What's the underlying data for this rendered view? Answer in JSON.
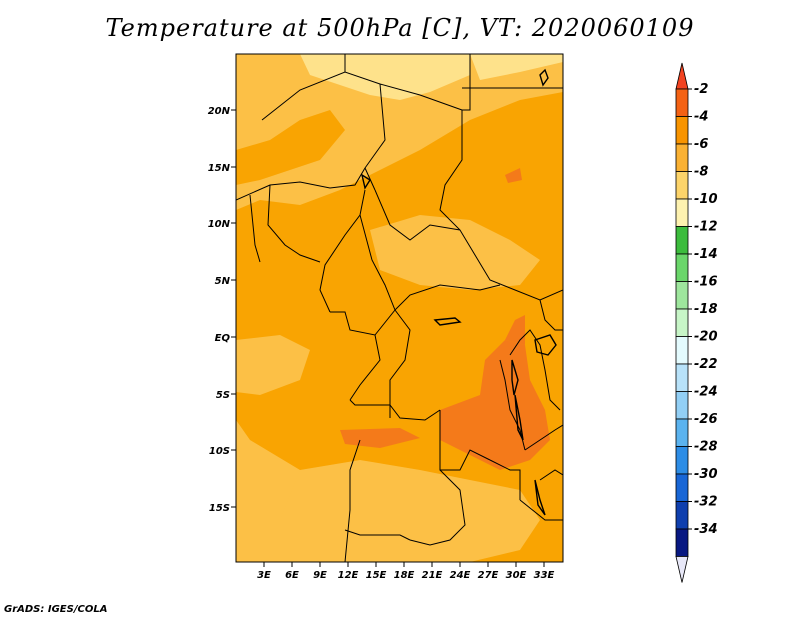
{
  "title": "Temperature at 500hPa [C], VT: 2020060109",
  "credit": "GrADS: IGES/COLA",
  "map": {
    "lat_labels": [
      "20N",
      "15N",
      "10N",
      "5N",
      "EQ",
      "5S",
      "10S",
      "15S"
    ],
    "lon_labels": [
      "3E",
      "6E",
      "9E",
      "12E",
      "15E",
      "18E",
      "21E",
      "24E",
      "27E",
      "30E",
      "33E"
    ],
    "field_colors": {
      "-8_to_-6": "#fcc046",
      "-6_to_-4": "#f9a402",
      "-4_to_-2": "#f47a1a",
      "-10_to_-8": "#fee28b"
    }
  },
  "colorbar": {
    "labels": [
      "-2",
      "-4",
      "-6",
      "-8",
      "-10",
      "-12",
      "-14",
      "-16",
      "-18",
      "-20",
      "-22",
      "-24",
      "-26",
      "-28",
      "-30",
      "-32",
      "-34"
    ],
    "colors": [
      "#f46214",
      "#f89400",
      "#fab133",
      "#fdd46a",
      "#fef2b0",
      "#3cbc3d",
      "#6ad66a",
      "#9ee69d",
      "#c7f5c7",
      "#e4fbfe",
      "#b8e2f9",
      "#92cff5",
      "#5bb3ef",
      "#2d8de6",
      "#1866d6",
      "#0f3fae",
      "#081882"
    ],
    "top_triangle_color": "#f24321",
    "bottom_triangle_color": "#e8e8f8"
  }
}
